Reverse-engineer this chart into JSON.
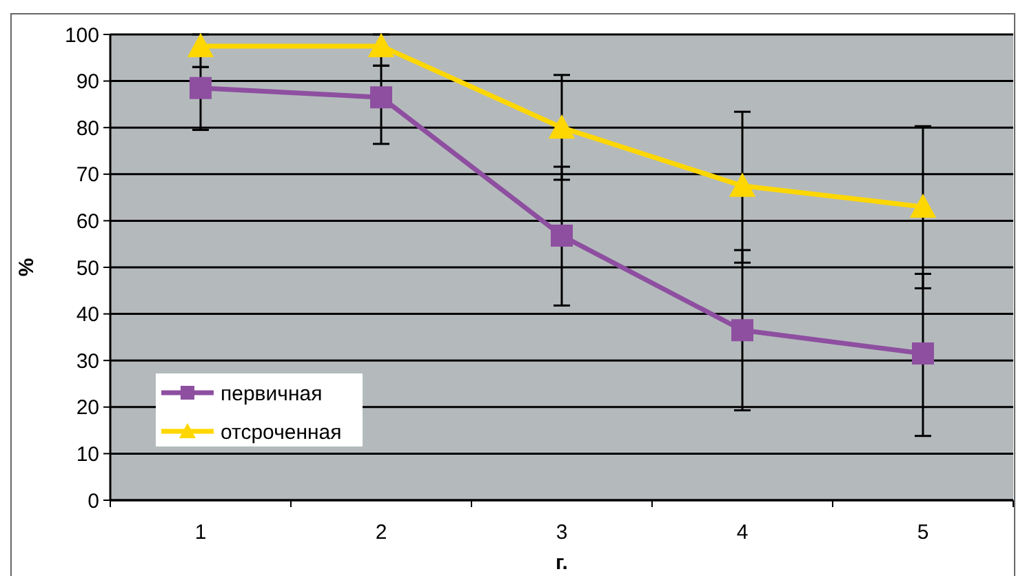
{
  "chart_data": {
    "type": "line",
    "xlabel": "г.",
    "ylabel": "%",
    "categories": [
      "1",
      "2",
      "3",
      "4",
      "5"
    ],
    "ylim": [
      0,
      100
    ],
    "yticks": [
      0,
      10,
      20,
      30,
      40,
      50,
      60,
      70,
      80,
      90,
      100
    ],
    "grid": "y",
    "legend": "bottom left",
    "series": [
      {
        "name": "первичная",
        "color": "#8e4fa0",
        "marker": "square",
        "values": [
          88.5,
          86.5,
          56.8,
          36.5,
          31.5
        ],
        "errors": [
          [
            79.5,
            93
          ],
          [
            76.5,
            93.3
          ],
          [
            41.8,
            71.6
          ],
          [
            19.3,
            53.7
          ],
          [
            13.8,
            48.6
          ]
        ]
      },
      {
        "name": "отсроченная",
        "color": "#ffd700",
        "marker": "triangle",
        "values": [
          97.5,
          97.5,
          80,
          67.5,
          63
        ],
        "errors": [
          [
            93,
            100
          ],
          [
            93.3,
            100
          ],
          [
            68.8,
            91.3
          ],
          [
            51,
            83.4
          ],
          [
            45.5,
            80.3
          ]
        ]
      }
    ]
  }
}
